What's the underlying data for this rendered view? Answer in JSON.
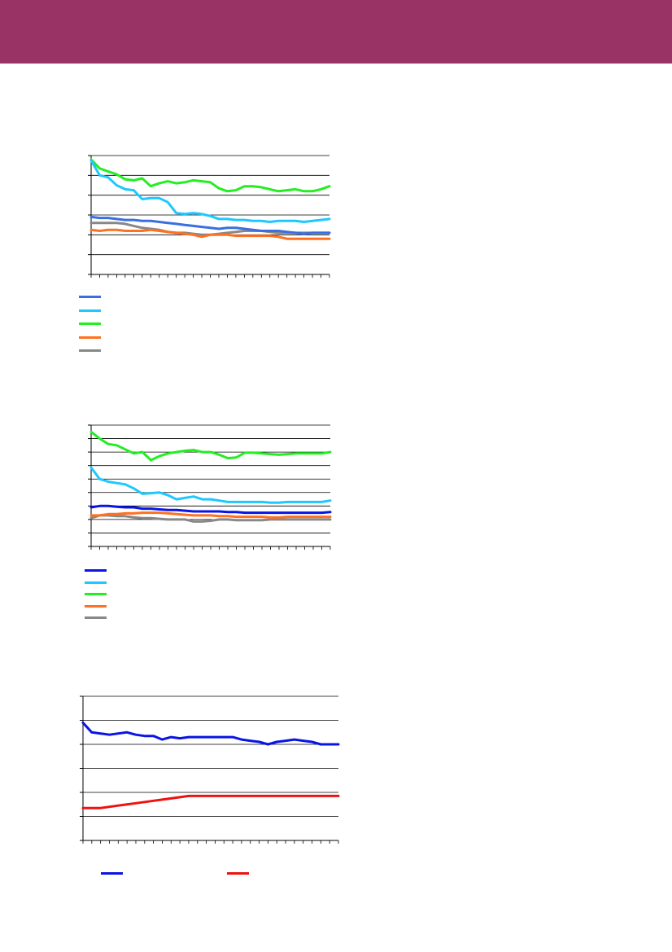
{
  "header": {
    "color": "#993366"
  },
  "chart_data": [
    {
      "type": "line",
      "title": "",
      "xlabel": "",
      "ylabel": "",
      "ylim": [
        0,
        6
      ],
      "grid": true,
      "legend_placement": "bottom-left",
      "x": [
        1,
        2,
        3,
        4,
        5,
        6,
        7,
        8,
        9,
        10,
        11,
        12,
        13,
        14,
        15,
        16,
        17,
        18,
        19,
        20,
        21,
        22,
        23,
        24,
        25,
        26,
        27,
        28,
        29
      ],
      "series": [
        {
          "color": "#3a6fe0",
          "values": [
            2.9,
            2.85,
            2.85,
            2.8,
            2.75,
            2.75,
            2.7,
            2.7,
            2.65,
            2.6,
            2.55,
            2.5,
            2.45,
            2.4,
            2.35,
            2.3,
            2.35,
            2.35,
            2.3,
            2.25,
            2.2,
            2.2,
            2.2,
            2.15,
            2.1,
            2.05,
            2.1,
            2.1,
            2.1
          ]
        },
        {
          "color": "#1ec8ff",
          "values": [
            5.75,
            5.0,
            4.9,
            4.5,
            4.3,
            4.25,
            3.8,
            3.85,
            3.85,
            3.65,
            3.1,
            3.05,
            3.1,
            3.05,
            2.95,
            2.8,
            2.8,
            2.75,
            2.75,
            2.7,
            2.7,
            2.65,
            2.7,
            2.7,
            2.7,
            2.65,
            2.7,
            2.75,
            2.8
          ]
        },
        {
          "color": "#22ee22",
          "values": [
            5.8,
            5.35,
            5.2,
            5.05,
            4.8,
            4.75,
            4.85,
            4.45,
            4.6,
            4.7,
            4.6,
            4.65,
            4.75,
            4.7,
            4.65,
            4.35,
            4.2,
            4.25,
            4.45,
            4.45,
            4.4,
            4.3,
            4.2,
            4.25,
            4.3,
            4.2,
            4.2,
            4.3,
            4.45
          ]
        },
        {
          "color": "#ff7020",
          "values": [
            2.25,
            2.2,
            2.25,
            2.25,
            2.2,
            2.2,
            2.2,
            2.25,
            2.2,
            2.15,
            2.1,
            2.05,
            2.0,
            1.9,
            2.0,
            2.0,
            2.0,
            1.95,
            1.95,
            1.95,
            1.95,
            1.95,
            1.9,
            1.8,
            1.8,
            1.8,
            1.8,
            1.8,
            1.8
          ]
        },
        {
          "color": "#888888",
          "values": [
            2.6,
            2.6,
            2.6,
            2.6,
            2.55,
            2.45,
            2.35,
            2.3,
            2.25,
            2.15,
            2.1,
            2.1,
            2.05,
            2.0,
            2.0,
            2.05,
            2.1,
            2.15,
            2.2,
            2.2,
            2.2,
            2.15,
            2.1,
            2.1,
            2.1,
            2.1,
            2.1,
            2.1,
            2.1
          ]
        }
      ]
    },
    {
      "type": "line",
      "title": "",
      "xlabel": "",
      "ylabel": "",
      "ylim": [
        0,
        9
      ],
      "grid": true,
      "legend_placement": "bottom-left",
      "x": [
        1,
        2,
        3,
        4,
        5,
        6,
        7,
        8,
        9,
        10,
        11,
        12,
        13,
        14,
        15,
        16,
        17,
        18,
        19,
        20,
        21,
        22,
        23,
        24,
        25,
        26,
        27,
        28,
        29
      ],
      "series": [
        {
          "color": "#0a14e6",
          "values": [
            2.9,
            3.0,
            3.0,
            2.95,
            2.9,
            2.9,
            2.8,
            2.8,
            2.75,
            2.7,
            2.7,
            2.65,
            2.6,
            2.6,
            2.6,
            2.6,
            2.55,
            2.55,
            2.5,
            2.5,
            2.5,
            2.5,
            2.5,
            2.5,
            2.5,
            2.5,
            2.5,
            2.5,
            2.55
          ]
        },
        {
          "color": "#1ec8ff",
          "values": [
            5.85,
            5.0,
            4.8,
            4.7,
            4.6,
            4.3,
            3.9,
            3.95,
            4.0,
            3.8,
            3.5,
            3.6,
            3.7,
            3.5,
            3.5,
            3.4,
            3.3,
            3.3,
            3.3,
            3.3,
            3.3,
            3.25,
            3.25,
            3.3,
            3.3,
            3.3,
            3.3,
            3.3,
            3.4
          ]
        },
        {
          "color": "#22ee22",
          "values": [
            8.5,
            8.0,
            7.6,
            7.5,
            7.2,
            6.9,
            7.0,
            6.4,
            6.7,
            6.9,
            7.0,
            7.1,
            7.15,
            7.0,
            7.0,
            6.8,
            6.55,
            6.6,
            6.95,
            6.95,
            6.9,
            6.85,
            6.8,
            6.85,
            6.9,
            6.9,
            6.9,
            6.9,
            7.0
          ]
        },
        {
          "color": "#ff7020",
          "values": [
            2.3,
            2.3,
            2.4,
            2.4,
            2.45,
            2.45,
            2.5,
            2.5,
            2.5,
            2.45,
            2.4,
            2.35,
            2.3,
            2.3,
            2.3,
            2.25,
            2.25,
            2.2,
            2.2,
            2.2,
            2.2,
            2.15,
            2.15,
            2.2,
            2.2,
            2.2,
            2.2,
            2.2,
            2.2
          ]
        },
        {
          "color": "#888888",
          "values": [
            2.1,
            2.3,
            2.3,
            2.25,
            2.25,
            2.15,
            2.1,
            2.1,
            2.05,
            2.0,
            2.0,
            2.0,
            1.85,
            1.85,
            1.9,
            2.0,
            2.0,
            1.95,
            1.95,
            1.95,
            1.95,
            2.0,
            2.0,
            2.0,
            2.0,
            2.0,
            2.0,
            2.0,
            2.0
          ]
        }
      ]
    },
    {
      "type": "line",
      "title": "",
      "xlabel": "",
      "ylabel": "",
      "ylim": [
        0,
        6
      ],
      "grid": true,
      "legend_placement": "bottom-center",
      "x": [
        1,
        2,
        3,
        4,
        5,
        6,
        7,
        8,
        9,
        10,
        11,
        12,
        13,
        14,
        15,
        16,
        17,
        18,
        19,
        20,
        21,
        22,
        23,
        24,
        25,
        26,
        27,
        28,
        29,
        30
      ],
      "series": [
        {
          "color": "#0a14e6",
          "values": [
            4.9,
            4.5,
            4.45,
            4.4,
            4.45,
            4.5,
            4.4,
            4.35,
            4.35,
            4.2,
            4.3,
            4.25,
            4.3,
            4.3,
            4.3,
            4.3,
            4.3,
            4.3,
            4.2,
            4.15,
            4.1,
            4.0,
            4.1,
            4.15,
            4.2,
            4.15,
            4.1,
            4.0,
            4.0,
            4.0
          ]
        },
        {
          "color": "#ee1111",
          "values": [
            1.35,
            1.35,
            1.35,
            1.4,
            1.45,
            1.5,
            1.55,
            1.6,
            1.65,
            1.7,
            1.75,
            1.8,
            1.85,
            1.85,
            1.85,
            1.85,
            1.85,
            1.85,
            1.85,
            1.85,
            1.85,
            1.85,
            1.85,
            1.85,
            1.85,
            1.85,
            1.85,
            1.85,
            1.85,
            1.85
          ]
        }
      ]
    }
  ]
}
